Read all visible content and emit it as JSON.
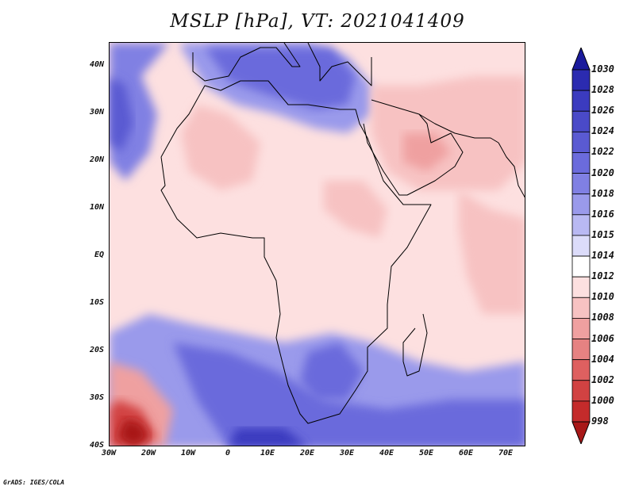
{
  "title": "MSLP [hPa], VT: 2021041409",
  "credit": "GrADS: IGES/COLA",
  "lat_ticks": [
    "40N",
    "30N",
    "20N",
    "10N",
    "EQ",
    "10S",
    "20S",
    "30S",
    "40S"
  ],
  "lon_ticks": [
    "30W",
    "20W",
    "10W",
    "0",
    "10E",
    "20E",
    "30E",
    "40E",
    "50E",
    "60E",
    "70E"
  ],
  "colorbar": {
    "labels": [
      "1030",
      "1028",
      "1026",
      "1024",
      "1022",
      "1020",
      "1018",
      "1016",
      "1015",
      "1014",
      "1012",
      "1010",
      "1008",
      "1006",
      "1004",
      "1002",
      "1000",
      "998"
    ],
    "colors": [
      "#1a1a9c",
      "#2b2bb0",
      "#3b3bbf",
      "#4a4ac8",
      "#5a5ad2",
      "#6b6bdc",
      "#8080e3",
      "#9a9aeb",
      "#b9b9f3",
      "#dcdcfa",
      "#ffffff",
      "#fde0e0",
      "#f7c2c2",
      "#efa0a0",
      "#e68282",
      "#de6060",
      "#d14242",
      "#c42b2b",
      "#a81818"
    ]
  },
  "map": {
    "domain": {
      "lon_min": -30,
      "lon_max": 75,
      "lat_min": -40,
      "lat_max": 45
    },
    "background_color": "#fde0e0",
    "pressure_zones": [
      {
        "name": "north-atlantic-high",
        "color": "#8080e3",
        "points": [
          [
            -30,
            45
          ],
          [
            -30,
            20
          ],
          [
            -26,
            16
          ],
          [
            -20,
            22
          ],
          [
            -18,
            30
          ],
          [
            -22,
            38
          ],
          [
            -15,
            45
          ]
        ]
      },
      {
        "name": "north-atlantic-high-core",
        "color": "#5a5ad2",
        "points": [
          [
            -30,
            38
          ],
          [
            -30,
            24
          ],
          [
            -27,
            22
          ],
          [
            -24,
            28
          ],
          [
            -26,
            36
          ]
        ]
      },
      {
        "name": "mediterranean-high",
        "color": "#9a9aeb",
        "points": [
          [
            -12,
            44
          ],
          [
            -6,
            36
          ],
          [
            2,
            32
          ],
          [
            12,
            30
          ],
          [
            22,
            27
          ],
          [
            30,
            26
          ],
          [
            36,
            30
          ],
          [
            36,
            36
          ],
          [
            30,
            42
          ],
          [
            20,
            45
          ],
          [
            -12,
            45
          ]
        ]
      },
      {
        "name": "mediterranean-high-core",
        "color": "#6b6bdc",
        "points": [
          [
            -6,
            44
          ],
          [
            0,
            37
          ],
          [
            10,
            34
          ],
          [
            22,
            31
          ],
          [
            30,
            32
          ],
          [
            32,
            38
          ],
          [
            26,
            44
          ]
        ]
      },
      {
        "name": "sahara-low",
        "color": "#f7c2c2",
        "points": [
          [
            -8,
            32
          ],
          [
            0,
            30
          ],
          [
            8,
            24
          ],
          [
            6,
            16
          ],
          [
            -2,
            14
          ],
          [
            -10,
            18
          ],
          [
            -12,
            26
          ]
        ]
      },
      {
        "name": "arabia-iran-low",
        "color": "#f7c2c2",
        "points": [
          [
            36,
            36
          ],
          [
            48,
            36
          ],
          [
            62,
            38
          ],
          [
            75,
            38
          ],
          [
            75,
            20
          ],
          [
            68,
            14
          ],
          [
            58,
            14
          ],
          [
            48,
            14
          ],
          [
            40,
            18
          ],
          [
            36,
            26
          ]
        ]
      },
      {
        "name": "arabia-low-core",
        "color": "#efa0a0",
        "points": [
          [
            44,
            26
          ],
          [
            52,
            26
          ],
          [
            56,
            22
          ],
          [
            50,
            18
          ],
          [
            44,
            20
          ]
        ]
      },
      {
        "name": "east-africa-low",
        "color": "#f7c2c2",
        "points": [
          [
            24,
            16
          ],
          [
            34,
            16
          ],
          [
            40,
            10
          ],
          [
            38,
            4
          ],
          [
            30,
            6
          ],
          [
            24,
            10
          ]
        ]
      },
      {
        "name": "indian-ocean-low",
        "color": "#f7c2c2",
        "points": [
          [
            58,
            14
          ],
          [
            66,
            10
          ],
          [
            75,
            8
          ],
          [
            75,
            -12
          ],
          [
            64,
            -12
          ],
          [
            60,
            -4
          ],
          [
            58,
            6
          ]
        ]
      },
      {
        "name": "south-atlantic-high",
        "color": "#9a9aeb",
        "points": [
          [
            -30,
            -16
          ],
          [
            -20,
            -12
          ],
          [
            -10,
            -14
          ],
          [
            2,
            -16
          ],
          [
            14,
            -18
          ],
          [
            26,
            -16
          ],
          [
            36,
            -18
          ],
          [
            48,
            -22
          ],
          [
            60,
            -24
          ],
          [
            75,
            -22
          ],
          [
            75,
            -40
          ],
          [
            -30,
            -40
          ]
        ]
      },
      {
        "name": "south-atlantic-high-core",
        "color": "#6b6bdc",
        "points": [
          [
            -14,
            -18
          ],
          [
            0,
            -20
          ],
          [
            12,
            -24
          ],
          [
            24,
            -30
          ],
          [
            40,
            -32
          ],
          [
            56,
            -30
          ],
          [
            75,
            -30
          ],
          [
            75,
            -40
          ],
          [
            0,
            -40
          ],
          [
            -8,
            -30
          ]
        ]
      },
      {
        "name": "south-africa-high",
        "color": "#6b6bdc",
        "points": [
          [
            20,
            -20
          ],
          [
            28,
            -18
          ],
          [
            34,
            -24
          ],
          [
            30,
            -30
          ],
          [
            22,
            -30
          ],
          [
            18,
            -26
          ]
        ]
      },
      {
        "name": "southern-high-core",
        "color": "#3b3bbf",
        "points": [
          [
            2,
            -36
          ],
          [
            14,
            -36
          ],
          [
            20,
            -40
          ],
          [
            0,
            -40
          ]
        ]
      },
      {
        "name": "southwest-low",
        "color": "#efa0a0",
        "points": [
          [
            -30,
            -22
          ],
          [
            -22,
            -24
          ],
          [
            -14,
            -32
          ],
          [
            -16,
            -40
          ],
          [
            -30,
            -40
          ]
        ]
      },
      {
        "name": "southwest-low-core",
        "color": "#d14242",
        "points": [
          [
            -28,
            -30
          ],
          [
            -22,
            -32
          ],
          [
            -18,
            -38
          ],
          [
            -22,
            -40
          ],
          [
            -30,
            -40
          ],
          [
            -30,
            -32
          ]
        ]
      },
      {
        "name": "southwest-low-center",
        "color": "#a81818",
        "points": [
          [
            -26,
            -34
          ],
          [
            -22,
            -35
          ],
          [
            -20,
            -38
          ],
          [
            -24,
            -40
          ],
          [
            -28,
            -38
          ]
        ]
      }
    ],
    "coastlines": [
      {
        "name": "africa-coast",
        "points": [
          [
            -17,
            21
          ],
          [
            -16,
            15
          ],
          [
            -17,
            14
          ],
          [
            -13,
            8
          ],
          [
            -8,
            4
          ],
          [
            -2,
            5
          ],
          [
            6,
            4
          ],
          [
            9,
            4
          ],
          [
            9,
            0
          ],
          [
            12,
            -5
          ],
          [
            13,
            -12
          ],
          [
            12,
            -17
          ],
          [
            15,
            -27
          ],
          [
            18,
            -33
          ],
          [
            20,
            -35
          ],
          [
            28,
            -33
          ],
          [
            32,
            -28
          ],
          [
            35,
            -24
          ],
          [
            35,
            -19
          ],
          [
            40,
            -15
          ],
          [
            40,
            -10
          ],
          [
            41,
            -2
          ],
          [
            45,
            2
          ],
          [
            51,
            11
          ],
          [
            44,
            11
          ],
          [
            43,
            12
          ],
          [
            39,
            16
          ],
          [
            35,
            25
          ],
          [
            33,
            28
          ],
          [
            32,
            31
          ],
          [
            28,
            31
          ],
          [
            20,
            32
          ],
          [
            15,
            32
          ],
          [
            10,
            37
          ],
          [
            3,
            37
          ],
          [
            -2,
            35
          ],
          [
            -6,
            36
          ],
          [
            -10,
            30
          ],
          [
            -13,
            27
          ],
          [
            -17,
            21
          ]
        ]
      },
      {
        "name": "madagascar",
        "points": [
          [
            49,
            -12
          ],
          [
            50,
            -16
          ],
          [
            48,
            -24
          ],
          [
            45,
            -25
          ],
          [
            44,
            -22
          ],
          [
            44,
            -18
          ],
          [
            47,
            -15
          ]
        ]
      },
      {
        "name": "arabia-coast",
        "points": [
          [
            34,
            28
          ],
          [
            35,
            24
          ],
          [
            39,
            18
          ],
          [
            43,
            13
          ],
          [
            45,
            13
          ],
          [
            52,
            16
          ],
          [
            57,
            19
          ],
          [
            59,
            22
          ],
          [
            56,
            26
          ],
          [
            51,
            24
          ],
          [
            50,
            28
          ],
          [
            48,
            30
          ],
          [
            44,
            31
          ],
          [
            36,
            33
          ]
        ]
      },
      {
        "name": "india-coast",
        "points": [
          [
            68,
            24
          ],
          [
            70,
            21
          ],
          [
            72,
            19
          ],
          [
            73,
            15
          ],
          [
            75,
            12
          ]
        ]
      },
      {
        "name": "iran-coast",
        "points": [
          [
            48,
            30
          ],
          [
            52,
            28
          ],
          [
            57,
            26
          ],
          [
            62,
            25
          ],
          [
            66,
            25
          ],
          [
            68,
            24
          ]
        ]
      },
      {
        "name": "europe-coast",
        "points": [
          [
            -9,
            43
          ],
          [
            -9,
            39
          ],
          [
            -6,
            37
          ],
          [
            0,
            38
          ],
          [
            3,
            42
          ],
          [
            8,
            44
          ],
          [
            12,
            44
          ],
          [
            16,
            40
          ],
          [
            18,
            40
          ],
          [
            14,
            45
          ]
        ]
      },
      {
        "name": "italy-greece-turkey",
        "points": [
          [
            20,
            45
          ],
          [
            23,
            40
          ],
          [
            23,
            37
          ],
          [
            26,
            40
          ],
          [
            30,
            41
          ],
          [
            36,
            36
          ],
          [
            36,
            42
          ]
        ]
      }
    ]
  }
}
